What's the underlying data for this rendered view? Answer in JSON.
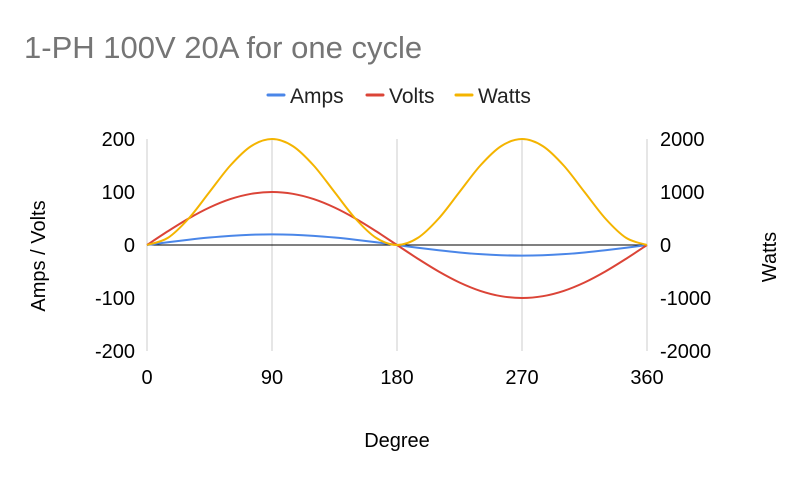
{
  "chart_data": {
    "type": "line",
    "title": "1-PH 100V 20A for one cycle",
    "xlabel": "Degree",
    "ylabel": "Amps / Volts",
    "y2label": "Watts",
    "x_ticks": [
      "0",
      "90",
      "180",
      "270",
      "360"
    ],
    "xlim": [
      0,
      360
    ],
    "ylim": [
      -200,
      200
    ],
    "y_ticks": [
      "200",
      "100",
      "0",
      "-100",
      "-200"
    ],
    "y2lim": [
      -2000,
      2000
    ],
    "y2_ticks": [
      "2000",
      "1000",
      "0",
      "-1000",
      "-2000"
    ],
    "legend_position": "top",
    "grid": {
      "vertical": true,
      "horizontal": false,
      "zero_line": true
    },
    "x": [
      0,
      15,
      30,
      45,
      60,
      75,
      90,
      105,
      120,
      135,
      150,
      165,
      180,
      195,
      210,
      225,
      240,
      255,
      270,
      285,
      300,
      315,
      330,
      345,
      360
    ],
    "series": [
      {
        "name": "Amps",
        "axis": "left",
        "color": "#4a86e8",
        "values": [
          0,
          5.18,
          10,
          14.14,
          17.32,
          19.32,
          20,
          19.32,
          17.32,
          14.14,
          10,
          5.18,
          0,
          -5.18,
          -10,
          -14.14,
          -17.32,
          -19.32,
          -20,
          -19.32,
          -17.32,
          -14.14,
          -10,
          -5.18,
          0
        ]
      },
      {
        "name": "Volts",
        "axis": "left",
        "color": "#db4437",
        "values": [
          0,
          25.88,
          50,
          70.71,
          86.6,
          96.59,
          100,
          96.59,
          86.6,
          70.71,
          50,
          25.88,
          0,
          -25.88,
          -50,
          -70.71,
          -86.6,
          -96.59,
          -100,
          -96.59,
          -86.6,
          -70.71,
          -50,
          -25.88,
          0
        ]
      },
      {
        "name": "Watts",
        "axis": "right",
        "color": "#f4b400",
        "values": [
          0,
          133.97,
          500,
          1000,
          1500,
          1866.03,
          2000,
          1866.03,
          1500,
          1000,
          500,
          133.97,
          0,
          133.97,
          500,
          1000,
          1500,
          1866.03,
          2000,
          1866.03,
          1500,
          1000,
          500,
          133.97,
          0
        ]
      }
    ]
  }
}
